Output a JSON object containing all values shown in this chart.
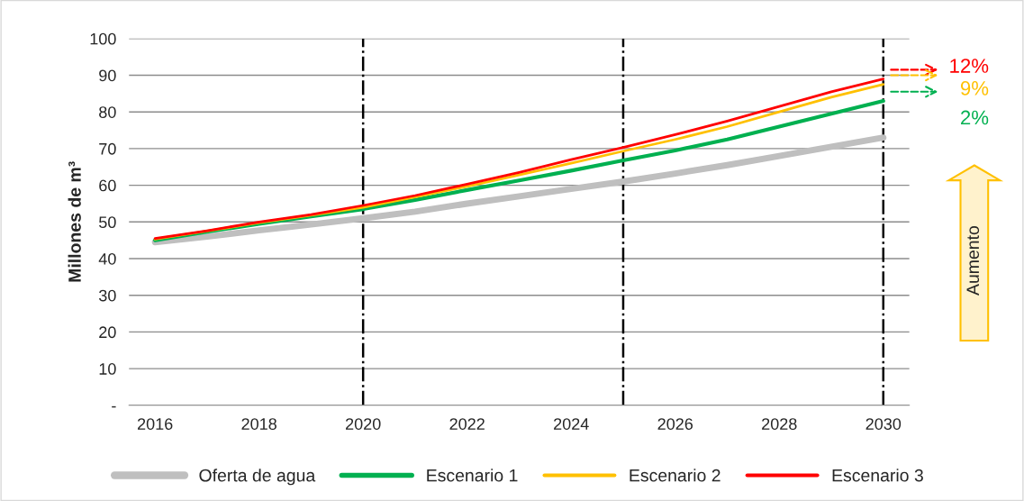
{
  "chart_data": {
    "type": "line",
    "x": [
      2016,
      2017,
      2018,
      2019,
      2020,
      2021,
      2022,
      2023,
      2024,
      2025,
      2026,
      2027,
      2028,
      2029,
      2030
    ],
    "series": [
      {
        "name": "Oferta de agua",
        "color": "#bfbfbf",
        "values": [
          44.5,
          46,
          47.7,
          49.3,
          51,
          52.8,
          55,
          57,
          59,
          61,
          63.2,
          65.5,
          68,
          70.5,
          73
        ]
      },
      {
        "name": "Escenario 1",
        "color": "#00b050",
        "values": [
          45,
          47.3,
          49.5,
          51.5,
          53.5,
          56,
          58.7,
          61.3,
          64,
          66.8,
          69.5,
          72.5,
          76,
          79.5,
          83
        ]
      },
      {
        "name": "Escenario 2",
        "color": "#ffc000",
        "values": [
          45.3,
          47.5,
          49.8,
          51.8,
          54,
          56.8,
          59.7,
          62.8,
          66,
          69.3,
          72.5,
          76,
          80,
          84,
          87.5
        ]
      },
      {
        "name": "Escenario 3",
        "color": "#ff0000",
        "values": [
          45.5,
          47.6,
          50,
          52,
          54.5,
          57.2,
          60.3,
          63.5,
          67,
          70.3,
          73.8,
          77.5,
          81.5,
          85.5,
          89
        ]
      }
    ],
    "ylabel": "Millones de m³",
    "xlim": [
      2015.5,
      2030.5
    ],
    "xticks": [
      2016,
      2018,
      2020,
      2022,
      2024,
      2026,
      2028,
      2030
    ],
    "ylim": [
      0,
      100
    ],
    "yticks": [
      {
        "value": 0,
        "label": "-"
      },
      10,
      20,
      30,
      40,
      50,
      60,
      70,
      80,
      90,
      100
    ],
    "ref_lines": [
      {
        "axis": "x",
        "value": 2020,
        "color": "#000000",
        "line_style": "dashdot"
      },
      {
        "axis": "x",
        "value": 2025,
        "color": "#000000",
        "line_style": "dashdot"
      },
      {
        "axis": "x",
        "value": 2030,
        "color": "#000000",
        "line_style": "dashdot"
      }
    ],
    "annotations": [
      "12%",
      "9%",
      "2%",
      "Aumento"
    ],
    "grid": "y",
    "legend": "bottom",
    "line_style": "solid",
    "marker": "none"
  }
}
